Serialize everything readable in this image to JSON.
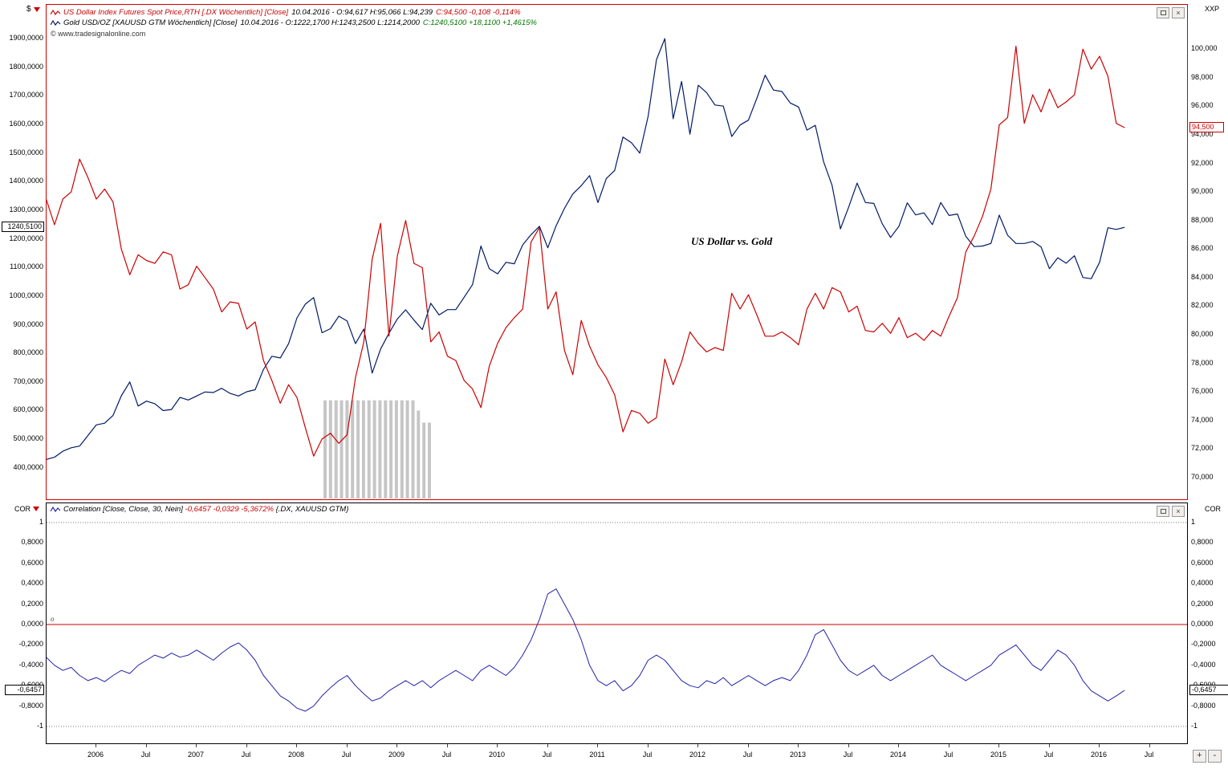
{
  "window": {
    "left_scale_symbol": "$",
    "right_scale_symbol": "XXP",
    "corr_left_symbol": "COR",
    "corr_right_symbol": "COR",
    "copyright": "© www.tradesignalonline.com",
    "zoom_in_label": "+",
    "zoom_out_label": "-"
  },
  "legend": {
    "dx_title": "US Dollar Index Futures Spot Price,RTH [.DX  Wöchentlich]  [Close]",
    "dx_ohlc": "10.04.2016 - O:94,617 H:95,066 L:94,239",
    "dx_close": "C:94,500 -0,108 -0,114%",
    "gold_title": "Gold USD/OZ [XAUUSD GTM  Wöchentlich]  [Close]",
    "gold_ohlc": "10.04.2016 - O:1222,1700 H:1243,2500 L:1214,2000",
    "gold_close": "C:1240,5100 +18,1100 +1,4615%",
    "corr_title": "Correlation [Close, Close, 30, Nein]",
    "corr_values": "-0,6457 -0,0329 -5,3672%",
    "corr_suffix": "{.DX, XAUUSD GTM}"
  },
  "annotation": "US Dollar vs. Gold",
  "zero_marker": "o",
  "markers": {
    "gold_close": {
      "value": 1240.51,
      "label": "1240,5100"
    },
    "dx_close": {
      "value": 94.5,
      "label": "94,500"
    },
    "correlation": {
      "value": -0.6457,
      "label": "-0,6457"
    }
  },
  "colors": {
    "dx_line": "#cc0000",
    "gold_line": "#001a66",
    "corr_line": "#2222aa",
    "zero_line": "#cc0000",
    "panel_border_main": "#cc0000",
    "panel_border_corr": "#000000",
    "bars": "#c6c6c6",
    "positive": "#007a00",
    "negative": "#cc0000"
  },
  "chart_data": [
    {
      "type": "line",
      "title": "US Dollar vs. Gold",
      "x_start": 2005.5,
      "x_step": 0.0833333,
      "xlim": [
        2005.504,
        2016.872
      ],
      "x_ticks": [
        {
          "t": 2006,
          "label": "2006"
        },
        {
          "t": 2006.5,
          "label": "Jul"
        },
        {
          "t": 2007,
          "label": "2007"
        },
        {
          "t": 2007.5,
          "label": "Jul"
        },
        {
          "t": 2008,
          "label": "2008"
        },
        {
          "t": 2008.5,
          "label": "Jul"
        },
        {
          "t": 2009,
          "label": "2009"
        },
        {
          "t": 2009.5,
          "label": "Jul"
        },
        {
          "t": 2010,
          "label": "2010"
        },
        {
          "t": 2010.5,
          "label": "Jul"
        },
        {
          "t": 2011,
          "label": "2011"
        },
        {
          "t": 2011.5,
          "label": "Jul"
        },
        {
          "t": 2012,
          "label": "2012"
        },
        {
          "t": 2012.5,
          "label": "Jul"
        },
        {
          "t": 2013,
          "label": "2013"
        },
        {
          "t": 2013.5,
          "label": "Jul"
        },
        {
          "t": 2014,
          "label": "2014"
        },
        {
          "t": 2014.5,
          "label": "Jul"
        },
        {
          "t": 2015,
          "label": "2015"
        },
        {
          "t": 2015.5,
          "label": "Jul"
        },
        {
          "t": 2016,
          "label": "2016"
        },
        {
          "t": 2016.5,
          "label": "Jul"
        }
      ],
      "left_axis": {
        "symbol": "$",
        "series": "Gold USD/OZ",
        "ylim_top": 2018,
        "ylim_bottom": 290,
        "ticks": [
          {
            "v": 1900,
            "label": "1900,0000"
          },
          {
            "v": 1800,
            "label": "1800,0000"
          },
          {
            "v": 1700,
            "label": "1700,0000"
          },
          {
            "v": 1600,
            "label": "1600,0000"
          },
          {
            "v": 1500,
            "label": "1500,0000"
          },
          {
            "v": 1400,
            "label": "1400,0000"
          },
          {
            "v": 1300,
            "label": "1300,0000"
          },
          {
            "v": 1200,
            "label": "1200,0000"
          },
          {
            "v": 1100,
            "label": "1100,0000"
          },
          {
            "v": 1000,
            "label": "1000,0000"
          },
          {
            "v": 900,
            "label": "900,0000"
          },
          {
            "v": 800,
            "label": "800,0000"
          },
          {
            "v": 700,
            "label": "700,0000"
          },
          {
            "v": 600,
            "label": "600,0000"
          },
          {
            "v": 500,
            "label": "500,0000"
          },
          {
            "v": 400,
            "label": "400,0000"
          }
        ]
      },
      "right_axis": {
        "symbol": "XXP",
        "series": ".DX",
        "ylim_top": 103.1,
        "ylim_bottom": 68.48,
        "ticks": [
          {
            "v": 100,
            "label": "100,000"
          },
          {
            "v": 98,
            "label": "98,000"
          },
          {
            "v": 96,
            "label": "96,000"
          },
          {
            "v": 94,
            "label": "94,000"
          },
          {
            "v": 92,
            "label": "92,000"
          },
          {
            "v": 90,
            "label": "90,000"
          },
          {
            "v": 88,
            "label": "88,000"
          },
          {
            "v": 86,
            "label": "86,000"
          },
          {
            "v": 84,
            "label": "84,000"
          },
          {
            "v": 82,
            "label": "82,000"
          },
          {
            "v": 80,
            "label": "80,000"
          },
          {
            "v": 78,
            "label": "78,000"
          },
          {
            "v": 76,
            "label": "76,000"
          },
          {
            "v": 74,
            "label": "74,000"
          },
          {
            "v": 72,
            "label": "72,000"
          },
          {
            "v": 70,
            "label": "70,000"
          }
        ]
      },
      "series": [
        {
          "name": "Gold USD/OZ (XAUUSD GTM)",
          "axis": "left",
          "color": "#001a66",
          "values": [
            429,
            437,
            458,
            470,
            476,
            513,
            550,
            556,
            583,
            652,
            700,
            616,
            633,
            624,
            600,
            604,
            646,
            637,
            651,
            665,
            663,
            678,
            660,
            651,
            666,
            673,
            744,
            790,
            784,
            834,
            924,
            972,
            995,
            872,
            886,
            930,
            913,
            834,
            885,
            731,
            815,
            870,
            920,
            952,
            916,
            883,
            975,
            934,
            953,
            953,
            996,
            1040,
            1175,
            1096,
            1078,
            1118,
            1113,
            1179,
            1215,
            1244,
            1169,
            1246,
            1307,
            1357,
            1386,
            1421,
            1327,
            1411,
            1439,
            1556,
            1536,
            1500,
            1628,
            1826,
            1900,
            1620,
            1750,
            1566,
            1737,
            1711,
            1668,
            1664,
            1558,
            1598,
            1615,
            1691,
            1772,
            1720,
            1715,
            1675,
            1661,
            1580,
            1597,
            1469,
            1387,
            1235,
            1312,
            1395,
            1327,
            1324,
            1253,
            1205,
            1244,
            1326,
            1284,
            1291,
            1250,
            1327,
            1282,
            1287,
            1209,
            1173,
            1175,
            1184,
            1283,
            1213,
            1184,
            1184,
            1191,
            1172,
            1096,
            1134,
            1115,
            1141,
            1065,
            1061,
            1118,
            1239,
            1233,
            1240.51
          ]
        },
        {
          "name": "US Dollar Index Futures Spot Price,RTH (.DX)",
          "axis": "right",
          "color": "#cc0000",
          "values": [
            89.5,
            87.7,
            89.5,
            90.0,
            92.3,
            91.0,
            89.5,
            90.2,
            89.3,
            86.0,
            84.2,
            85.6,
            85.2,
            85.0,
            85.8,
            85.6,
            83.2,
            83.5,
            84.8,
            84.0,
            83.2,
            81.6,
            82.3,
            82.2,
            80.4,
            80.9,
            78.2,
            76.8,
            75.2,
            76.5,
            75.6,
            73.5,
            71.5,
            72.7,
            73.1,
            72.4,
            73.0,
            77.0,
            79.5,
            85.3,
            87.8,
            79.9,
            85.5,
            88.0,
            85.0,
            84.7,
            79.5,
            80.2,
            78.5,
            78.2,
            76.8,
            76.2,
            74.9,
            77.8,
            79.4,
            80.5,
            81.2,
            81.8,
            86.5,
            87.5,
            81.8,
            83.0,
            78.9,
            77.2,
            81.0,
            79.2,
            77.9,
            77.0,
            75.8,
            73.2,
            74.7,
            74.5,
            73.8,
            74.2,
            78.3,
            76.5,
            78.1,
            80.2,
            79.4,
            78.8,
            79.1,
            78.9,
            82.9,
            81.8,
            82.8,
            81.4,
            79.9,
            79.9,
            80.2,
            79.8,
            79.3,
            81.8,
            82.9,
            81.8,
            83.3,
            83.0,
            81.6,
            82.0,
            80.3,
            80.2,
            80.8,
            80.1,
            81.2,
            79.8,
            80.1,
            79.6,
            80.3,
            79.9,
            81.3,
            82.6,
            85.8,
            86.9,
            88.3,
            90.2,
            94.7,
            95.2,
            100.2,
            94.8,
            96.8,
            95.6,
            97.2,
            95.9,
            96.3,
            96.8,
            100.0,
            98.6,
            99.5,
            98.1,
            94.8,
            94.5
          ]
        }
      ],
      "bars": {
        "x_from": 2008.28,
        "x_to": 2009.32,
        "color": "#c6c6c6",
        "top_values": [
          636,
          636,
          636,
          636,
          636,
          636,
          636,
          636,
          636,
          636,
          636,
          636,
          636,
          636,
          636,
          636,
          636,
          600,
          558,
          558
        ]
      },
      "annotation": {
        "text": "US Dollar vs. Gold",
        "x": 2011.93,
        "y_right_axis": 86.6
      }
    },
    {
      "type": "line",
      "name": "Correlation(.DX, XAUUSD GTM, 30)",
      "x_start": 2005.5,
      "x_step": 0.0833333,
      "xlim": [
        2005.504,
        2016.872
      ],
      "ylim_top": 1.189,
      "ylim_bottom": -1.165,
      "zero_line": 0,
      "bounds": [
        {
          "v": 1,
          "label": "1"
        },
        {
          "v": -1,
          "label": "-1"
        }
      ],
      "ticks": [
        {
          "v": 0.8,
          "label": "0,8000"
        },
        {
          "v": 0.6,
          "label": "0,6000"
        },
        {
          "v": 0.4,
          "label": "0,4000"
        },
        {
          "v": 0.2,
          "label": "0,2000"
        },
        {
          "v": 0,
          "label": "0,0000"
        },
        {
          "v": -0.2,
          "label": "-0,2000"
        },
        {
          "v": -0.4,
          "label": "-0,4000"
        },
        {
          "v": -0.6,
          "label": "-0,6000"
        },
        {
          "v": -0.8,
          "label": "-0,8000"
        }
      ],
      "series": [
        {
          "name": "Correlation",
          "color": "#2222aa",
          "values": [
            -0.32,
            -0.4,
            -0.45,
            -0.42,
            -0.5,
            -0.55,
            -0.52,
            -0.56,
            -0.5,
            -0.45,
            -0.48,
            -0.4,
            -0.35,
            -0.3,
            -0.33,
            -0.28,
            -0.32,
            -0.3,
            -0.25,
            -0.3,
            -0.35,
            -0.28,
            -0.22,
            -0.18,
            -0.25,
            -0.35,
            -0.5,
            -0.6,
            -0.7,
            -0.75,
            -0.82,
            -0.85,
            -0.8,
            -0.7,
            -0.62,
            -0.55,
            -0.5,
            -0.6,
            -0.68,
            -0.75,
            -0.72,
            -0.65,
            -0.6,
            -0.55,
            -0.6,
            -0.55,
            -0.62,
            -0.55,
            -0.5,
            -0.45,
            -0.5,
            -0.55,
            -0.45,
            -0.4,
            -0.45,
            -0.5,
            -0.42,
            -0.3,
            -0.15,
            0.05,
            0.3,
            0.35,
            0.2,
            0.05,
            -0.15,
            -0.4,
            -0.55,
            -0.6,
            -0.55,
            -0.65,
            -0.6,
            -0.5,
            -0.35,
            -0.3,
            -0.35,
            -0.45,
            -0.55,
            -0.6,
            -0.62,
            -0.55,
            -0.58,
            -0.52,
            -0.6,
            -0.55,
            -0.5,
            -0.55,
            -0.6,
            -0.55,
            -0.52,
            -0.55,
            -0.45,
            -0.3,
            -0.1,
            -0.05,
            -0.2,
            -0.35,
            -0.45,
            -0.5,
            -0.45,
            -0.4,
            -0.5,
            -0.55,
            -0.5,
            -0.45,
            -0.4,
            -0.35,
            -0.3,
            -0.4,
            -0.45,
            -0.5,
            -0.55,
            -0.5,
            -0.45,
            -0.4,
            -0.3,
            -0.25,
            -0.2,
            -0.3,
            -0.4,
            -0.45,
            -0.35,
            -0.25,
            -0.3,
            -0.4,
            -0.55,
            -0.65,
            -0.7,
            -0.75,
            -0.7,
            -0.6457
          ]
        }
      ]
    }
  ]
}
